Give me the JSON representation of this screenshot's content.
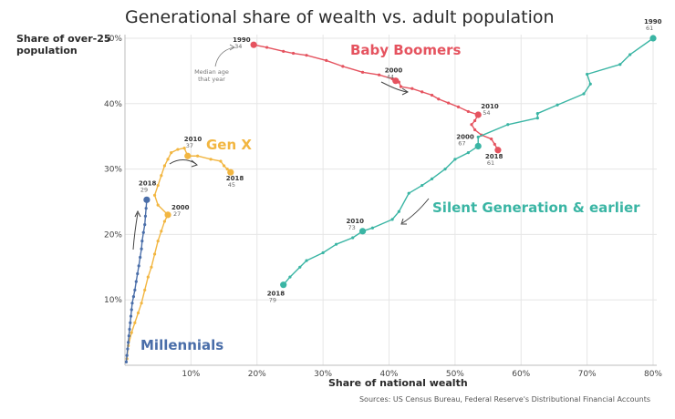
{
  "chart_data": {
    "type": "line",
    "title": "Generational share of wealth vs. adult population",
    "xlabel": "Share of national wealth",
    "ylabel": "Share of over-25 population",
    "source": "Sources: US Census Bureau, Federal Reserve's Distributional Financial Accounts",
    "xlim": [
      0,
      80
    ],
    "ylim": [
      0,
      50
    ],
    "x_ticks": [
      "10%",
      "20%",
      "30%",
      "40%",
      "50%",
      "60%",
      "70%",
      "80%"
    ],
    "y_ticks": [
      "10%",
      "20%",
      "30%",
      "40%",
      "50%"
    ],
    "grid": true,
    "note": {
      "text": [
        "Median age",
        "that year"
      ]
    },
    "series": [
      {
        "name": "Baby Boomers",
        "color": "#e5535f",
        "points": [
          [
            19.5,
            49.0
          ],
          [
            21.5,
            48.6
          ],
          [
            24.0,
            48.0
          ],
          [
            25.5,
            47.7
          ],
          [
            27.5,
            47.4
          ],
          [
            30.5,
            46.6
          ],
          [
            33.0,
            45.7
          ],
          [
            36.0,
            44.8
          ],
          [
            38.5,
            44.4
          ],
          [
            40.5,
            43.8
          ],
          [
            41.5,
            43.3
          ],
          [
            41.8,
            42.6
          ],
          [
            43.5,
            42.3
          ],
          [
            45.0,
            41.8
          ],
          [
            46.5,
            41.3
          ],
          [
            47.5,
            40.7
          ],
          [
            49.0,
            40.1
          ],
          [
            50.5,
            39.5
          ],
          [
            52.0,
            38.8
          ],
          [
            53.5,
            38.3
          ],
          [
            53.0,
            37.4
          ],
          [
            52.5,
            36.8
          ],
          [
            53.0,
            36.0
          ],
          [
            54.0,
            35.2
          ],
          [
            55.5,
            34.6
          ],
          [
            56.0,
            33.8
          ],
          [
            56.5,
            32.9
          ]
        ],
        "annotations": [
          {
            "year": "1990",
            "age": "34",
            "x": 19.5,
            "y": 49.0
          },
          {
            "year": "2000",
            "age": "44",
            "x": 41.0,
            "y": 43.5
          },
          {
            "year": "2010",
            "age": "54",
            "x": 53.5,
            "y": 38.3
          },
          {
            "year": "2018",
            "age": "61",
            "x": 56.5,
            "y": 32.9
          }
        ]
      },
      {
        "name": "Silent Generation & earlier",
        "color": "#3ab5a4",
        "points": [
          [
            80.0,
            50.0
          ],
          [
            76.5,
            47.5
          ],
          [
            75.0,
            46.0
          ],
          [
            70.0,
            44.5
          ],
          [
            70.5,
            43.0
          ],
          [
            69.5,
            41.5
          ],
          [
            65.5,
            39.8
          ],
          [
            62.5,
            38.5
          ],
          [
            62.5,
            37.8
          ],
          [
            58.0,
            36.8
          ],
          [
            53.5,
            34.9
          ],
          [
            53.5,
            33.5
          ],
          [
            52.0,
            32.5
          ],
          [
            50.0,
            31.5
          ],
          [
            48.5,
            30.0
          ],
          [
            46.5,
            28.5
          ],
          [
            45.0,
            27.5
          ],
          [
            43.0,
            26.3
          ],
          [
            41.5,
            23.5
          ],
          [
            40.5,
            22.3
          ],
          [
            37.5,
            21.0
          ],
          [
            36.0,
            20.5
          ],
          [
            34.5,
            19.5
          ],
          [
            32.0,
            18.5
          ],
          [
            30.0,
            17.2
          ],
          [
            27.5,
            16.0
          ],
          [
            26.5,
            15.0
          ],
          [
            25.0,
            13.5
          ],
          [
            24.0,
            12.3
          ]
        ],
        "annotations": [
          {
            "year": "1990",
            "age": "61",
            "x": 80.0,
            "y": 50.0
          },
          {
            "year": "2000",
            "age": "67",
            "x": 53.5,
            "y": 33.5
          },
          {
            "year": "2010",
            "age": "73",
            "x": 36.0,
            "y": 20.5
          },
          {
            "year": "2018",
            "age": "79",
            "x": 24.0,
            "y": 12.3
          }
        ]
      },
      {
        "name": "Gen X",
        "color": "#f2b641",
        "points": [
          [
            0.3,
            1.0
          ],
          [
            0.5,
            3.0
          ],
          [
            1.0,
            5.0
          ],
          [
            1.5,
            6.5
          ],
          [
            2.0,
            8.0
          ],
          [
            2.5,
            9.5
          ],
          [
            3.0,
            11.5
          ],
          [
            3.5,
            13.5
          ],
          [
            4.0,
            15.0
          ],
          [
            4.5,
            17.0
          ],
          [
            5.0,
            19.0
          ],
          [
            5.5,
            20.5
          ],
          [
            6.0,
            22.0
          ],
          [
            6.5,
            23.0
          ],
          [
            5.0,
            24.5
          ],
          [
            4.5,
            26.0
          ],
          [
            5.0,
            27.5
          ],
          [
            5.5,
            29.0
          ],
          [
            6.0,
            30.5
          ],
          [
            6.5,
            31.5
          ],
          [
            7.0,
            32.5
          ],
          [
            8.0,
            33.0
          ],
          [
            9.0,
            33.2
          ],
          [
            9.5,
            32.0
          ],
          [
            11.0,
            32.0
          ],
          [
            13.0,
            31.5
          ],
          [
            14.5,
            31.2
          ],
          [
            15.0,
            30.5
          ],
          [
            15.5,
            30.0
          ],
          [
            16.0,
            29.5
          ]
        ],
        "annotations": [
          {
            "year": "2000",
            "age": "27",
            "x": 6.5,
            "y": 23.0
          },
          {
            "year": "2010",
            "age": "37",
            "x": 9.5,
            "y": 32.0
          },
          {
            "year": "2018",
            "age": "45",
            "x": 16.0,
            "y": 29.5
          }
        ]
      },
      {
        "name": "Millennials",
        "color": "#4a6ea9",
        "points": [
          [
            0.2,
            0.5
          ],
          [
            0.3,
            1.5
          ],
          [
            0.4,
            2.5
          ],
          [
            0.5,
            3.5
          ],
          [
            0.6,
            4.5
          ],
          [
            0.7,
            5.5
          ],
          [
            0.8,
            6.5
          ],
          [
            0.9,
            7.5
          ],
          [
            1.0,
            8.5
          ],
          [
            1.1,
            9.5
          ],
          [
            1.3,
            10.5
          ],
          [
            1.5,
            11.5
          ],
          [
            1.7,
            12.8
          ],
          [
            1.9,
            14.0
          ],
          [
            2.1,
            15.2
          ],
          [
            2.3,
            16.5
          ],
          [
            2.5,
            17.8
          ],
          [
            2.6,
            19.0
          ],
          [
            2.8,
            20.3
          ],
          [
            3.0,
            21.5
          ],
          [
            3.1,
            22.8
          ],
          [
            3.2,
            24.0
          ],
          [
            3.3,
            25.3
          ]
        ],
        "annotations": [
          {
            "year": "2018",
            "age": "29",
            "x": 3.3,
            "y": 25.3
          }
        ]
      }
    ]
  }
}
